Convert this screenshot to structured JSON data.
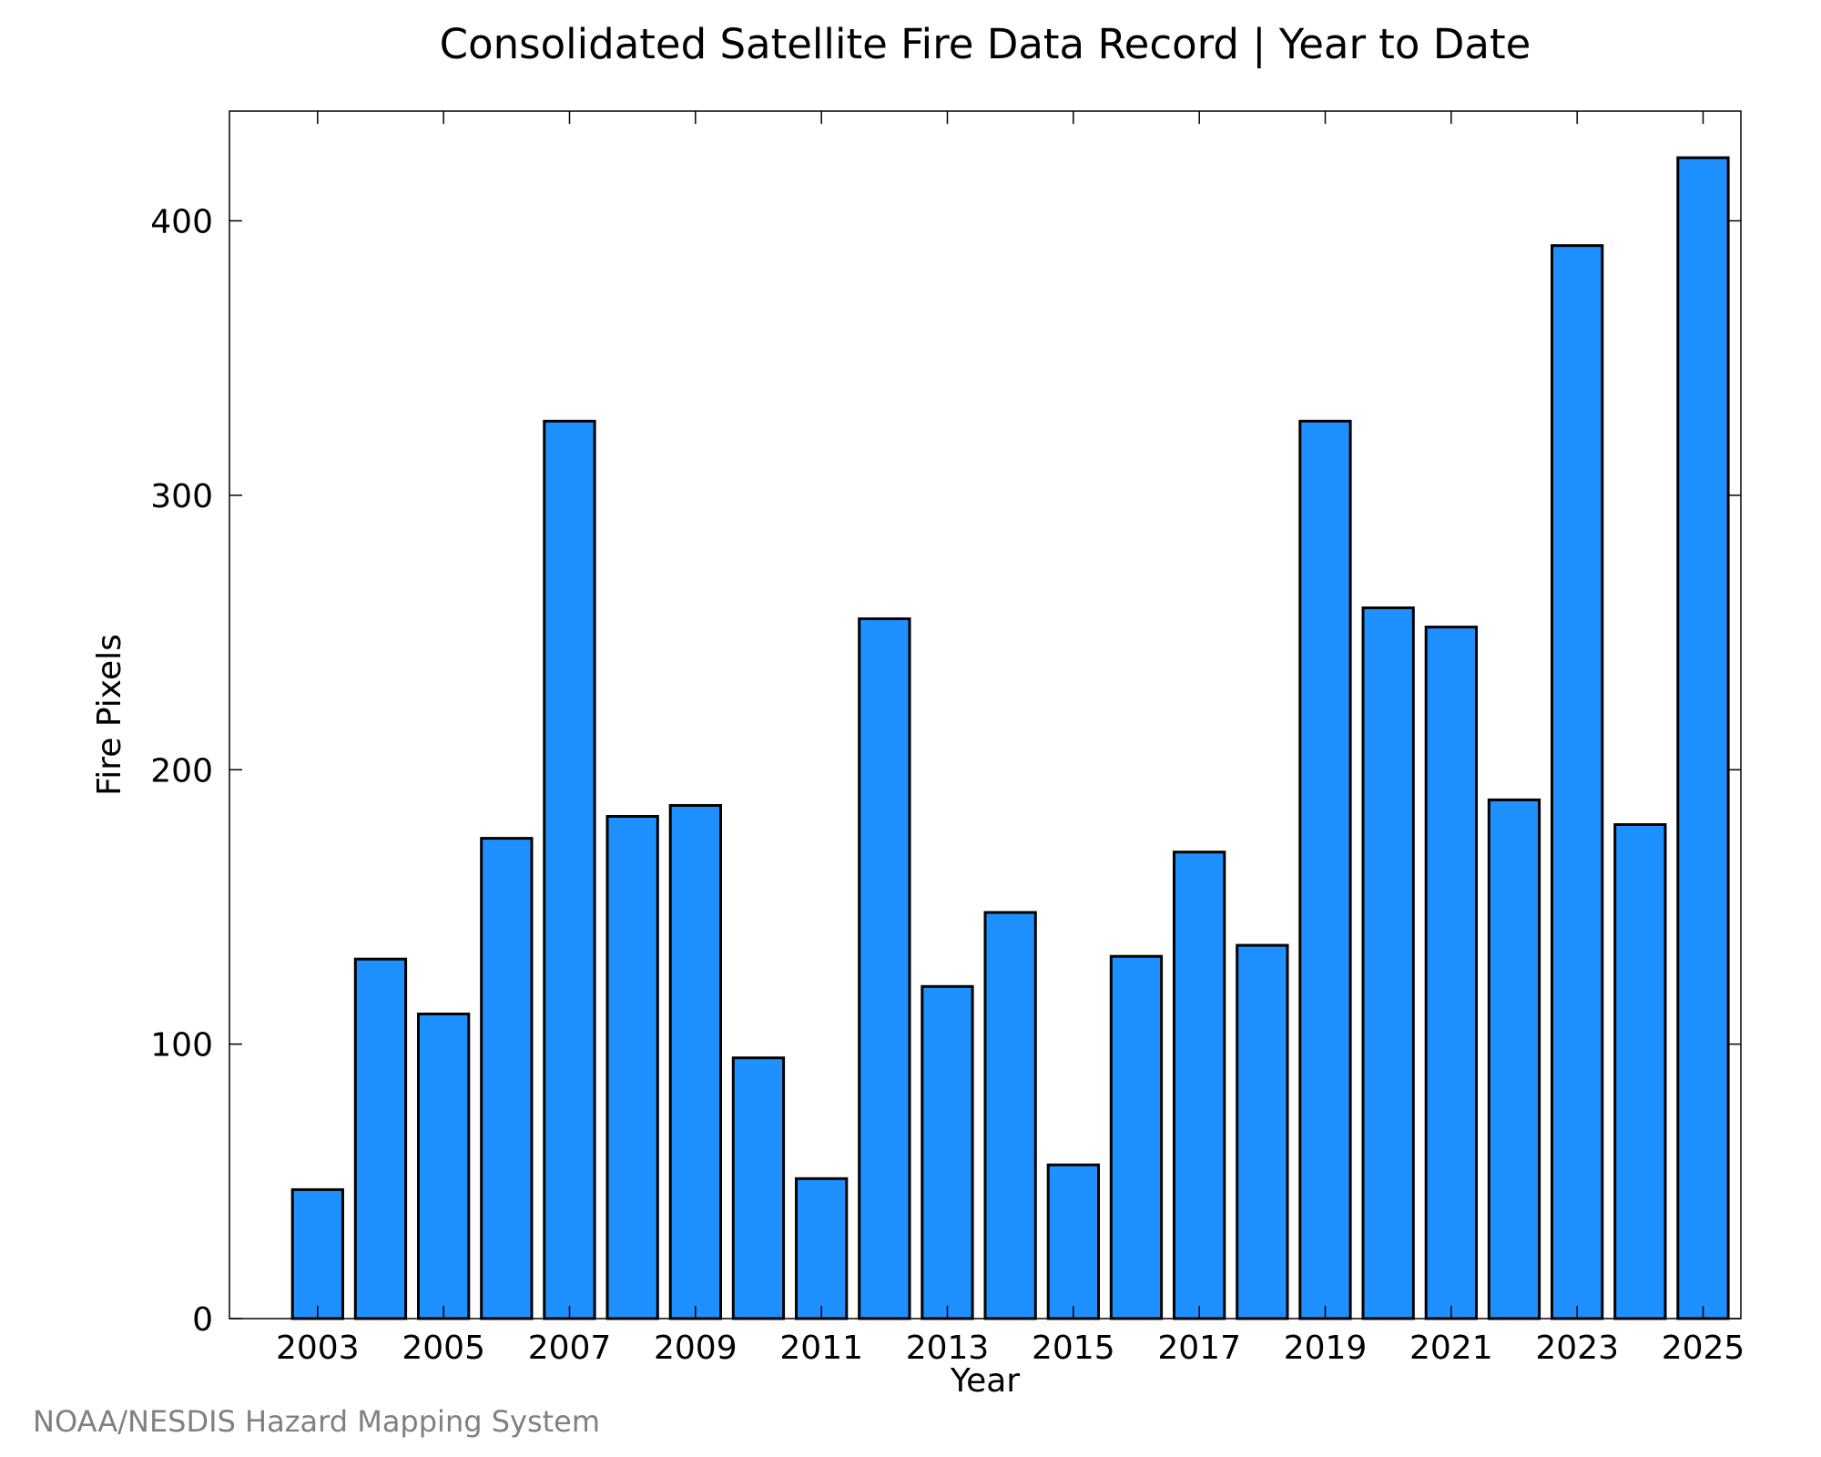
{
  "chart_data": {
    "type": "bar",
    "title": "Consolidated Satellite Fire Data Record | Year to Date",
    "xlabel": "Year",
    "ylabel": "Fire Pixels",
    "categories": [
      2003,
      2004,
      2005,
      2006,
      2007,
      2008,
      2009,
      2010,
      2011,
      2012,
      2013,
      2014,
      2015,
      2016,
      2017,
      2018,
      2019,
      2020,
      2021,
      2022,
      2023,
      2024,
      2025
    ],
    "values": [
      47,
      131,
      111,
      175,
      327,
      183,
      187,
      95,
      51,
      255,
      121,
      148,
      56,
      132,
      170,
      136,
      327,
      259,
      252,
      189,
      391,
      180,
      423
    ],
    "x_tick_labels": [
      "2003",
      "2005",
      "2007",
      "2009",
      "2011",
      "2013",
      "2015",
      "2017",
      "2019",
      "2021",
      "2023",
      "2025"
    ],
    "y_ticks": [
      0,
      100,
      200,
      300,
      400
    ],
    "ylim": [
      0,
      440
    ],
    "xlim": [
      2001.6,
      2025.6
    ],
    "grid": false,
    "bar_color": "#1e90ff",
    "edge_color": "#000000"
  },
  "credit": "NOAA/NESDIS Hazard Mapping System"
}
